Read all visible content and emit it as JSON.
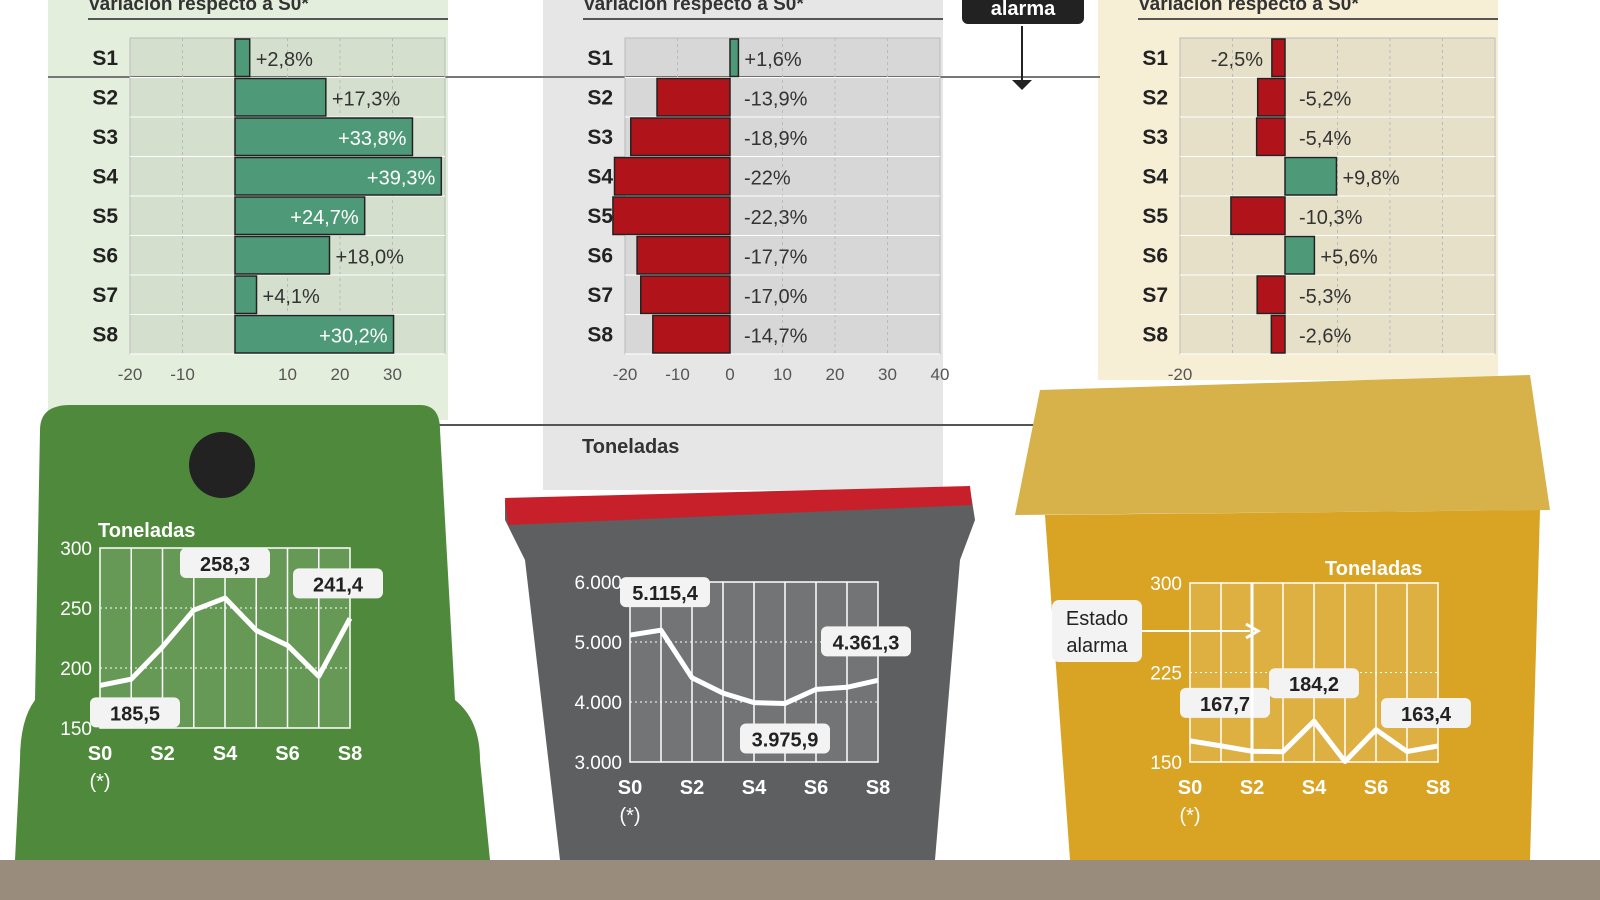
{
  "colors": {
    "positive": "#4e9a78",
    "negative": "#b0141a",
    "green_bin": "#4f8a3c",
    "gray_bin": "#5d5f61",
    "yellow_bin": "#d9a324",
    "lid_red": "#c8202a"
  },
  "alarm_label": "alarma",
  "chart_data": [
    {
      "type": "bar",
      "orientation": "horizontal",
      "title": "Variación respecto a S0*",
      "categories": [
        "S1",
        "S2",
        "S3",
        "S4",
        "S5",
        "S6",
        "S7",
        "S8"
      ],
      "values": [
        2.8,
        17.3,
        33.8,
        39.3,
        24.7,
        18.0,
        4.1,
        30.2
      ],
      "labels": [
        "+2,8%",
        "+17,3%",
        "+33,8%",
        "+39,3%",
        "+24,7%",
        "+18,0%",
        "+4,1%",
        "+30,2%"
      ],
      "xticks": [
        "-20",
        "-10",
        "10",
        "20",
        "30"
      ],
      "xlim": [
        -20,
        40
      ],
      "grid": true
    },
    {
      "type": "bar",
      "orientation": "horizontal",
      "title": "Variación respecto a S0*",
      "categories": [
        "S1",
        "S2",
        "S3",
        "S4",
        "S5",
        "S6",
        "S7",
        "S8"
      ],
      "values": [
        1.6,
        -13.9,
        -18.9,
        -22,
        -22.3,
        -17.7,
        -17.0,
        -14.7
      ],
      "labels": [
        "+1,6%",
        "-13,9%",
        "-18,9%",
        "-22%",
        "-22,3%",
        "-17,7%",
        "-17,0%",
        "-14,7%"
      ],
      "xticks": [
        "-20",
        "-10",
        "0",
        "10",
        "20",
        "30",
        "40"
      ],
      "xlim": [
        -20,
        40
      ],
      "grid": true
    },
    {
      "type": "bar",
      "orientation": "horizontal",
      "title": "Variación respecto a S0*",
      "categories": [
        "S1",
        "S2",
        "S3",
        "S4",
        "S5",
        "S6",
        "S7",
        "S8"
      ],
      "values": [
        -2.5,
        -5.2,
        -5.4,
        9.8,
        -10.3,
        5.6,
        -5.3,
        -2.6
      ],
      "labels": [
        "-2,5%",
        "-5,2%",
        "-5,4%",
        "+9,8%",
        "-10,3%",
        "+5,6%",
        "-5,3%",
        "-2,6%"
      ],
      "xticks": [
        "-20"
      ],
      "xlim": [
        -20,
        40
      ],
      "grid": true
    },
    {
      "type": "line",
      "ylabel": "Toneladas",
      "x": [
        "S0",
        "S1",
        "S2",
        "S3",
        "S4",
        "S5",
        "S6",
        "S7",
        "S8"
      ],
      "xticks": [
        "S0",
        "S2",
        "S4",
        "S6",
        "S8"
      ],
      "x_note": "(*)",
      "values": [
        185.5,
        190.7,
        217.6,
        248.2,
        258.3,
        231.3,
        218.9,
        193.1,
        241.4
      ],
      "yticks": [
        "150",
        "200",
        "250",
        "300"
      ],
      "ylim": [
        150,
        300
      ],
      "annotations": [
        "185,5",
        "258,3",
        "241,4"
      ]
    },
    {
      "type": "line",
      "ylabel": "Toneladas",
      "x": [
        "S0",
        "S1",
        "S2",
        "S3",
        "S4",
        "S5",
        "S6",
        "S7",
        "S8"
      ],
      "xticks": [
        "S0",
        "S2",
        "S4",
        "S6",
        "S8"
      ],
      "x_note": "(*)",
      "values": [
        5115.4,
        5197,
        4404,
        4148,
        3990,
        3975.9,
        4210,
        4245,
        4361.3
      ],
      "yticks": [
        "3.000",
        "4.000",
        "5.000",
        "6.000"
      ],
      "ylim": [
        3000,
        6000
      ],
      "annotations": [
        "5.115,4",
        "3.975,9",
        "4.361,3"
      ]
    },
    {
      "type": "line",
      "ylabel": "Toneladas",
      "x": [
        "S0",
        "S1",
        "S2",
        "S3",
        "S4",
        "S5",
        "S6",
        "S7",
        "S8"
      ],
      "xticks": [
        "S0",
        "S2",
        "S4",
        "S6",
        "S8"
      ],
      "x_note": "(*)",
      "values": [
        167.7,
        163.5,
        159.0,
        158.6,
        184.2,
        150.4,
        177.1,
        158.8,
        163.4
      ],
      "yticks": [
        "150",
        "225",
        "300"
      ],
      "ylim": [
        150,
        300
      ],
      "annotations": [
        "167,7",
        "184,2",
        "163,4"
      ],
      "callout": "Estado alarma"
    }
  ]
}
